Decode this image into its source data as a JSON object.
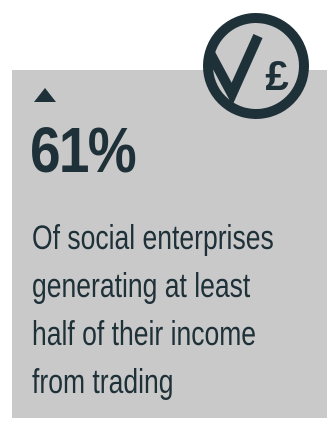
{
  "statistic": {
    "direction": "up",
    "value": "61%",
    "description_lines": [
      "Of social enterprises",
      "generating at least",
      "half of their income",
      "from trading"
    ]
  },
  "badge": {
    "icon": "tick-pound-icon",
    "symbol": "£"
  },
  "colors": {
    "background": "#ffffff",
    "card": "#c9c9c9",
    "ink": "#1e3038"
  }
}
